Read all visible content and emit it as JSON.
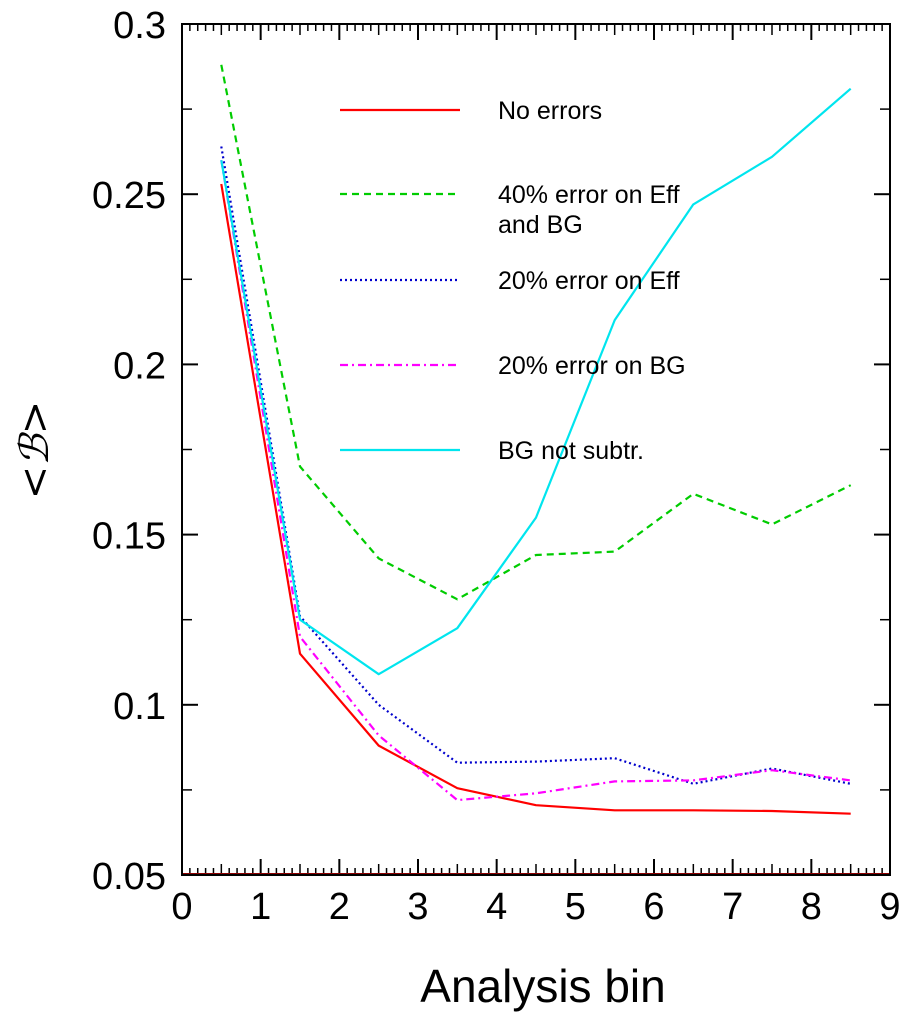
{
  "chart_data": {
    "type": "line",
    "xlabel": "Analysis bin",
    "ylabel": "<ℬ>",
    "xlim": [
      0,
      9
    ],
    "ylim": [
      0.05,
      0.3
    ],
    "xticks": [
      "0",
      "1",
      "2",
      "3",
      "4",
      "5",
      "6",
      "7",
      "8",
      "9"
    ],
    "yticks": [
      "0.05",
      "0.1",
      "0.15",
      "0.2",
      "0.25",
      "0.3"
    ],
    "grid": false,
    "legend_position": "top-right",
    "x": [
      0.5,
      1.5,
      2.5,
      3.5,
      4.5,
      5.5,
      6.5,
      7.5,
      8.5
    ],
    "series": [
      {
        "name": "No errors",
        "color": "#ff0000",
        "dash": "solid",
        "values": [
          0.253,
          0.115,
          0.088,
          0.0755,
          0.0705,
          0.069,
          0.069,
          0.0688,
          0.068
        ]
      },
      {
        "name": "40% error on Eff and BG",
        "legend_lines": [
          "40% error on Eff",
          "and BG"
        ],
        "color": "#00cc00",
        "dash": "dashed",
        "values": [
          0.288,
          0.17,
          0.143,
          0.131,
          0.144,
          0.145,
          0.162,
          0.153,
          0.1645
        ]
      },
      {
        "name": "20% error on Eff",
        "color": "#0000cc",
        "dash": "dotted",
        "values": [
          0.264,
          0.126,
          0.1,
          0.083,
          0.0833,
          0.0843,
          0.0768,
          0.0813,
          0.0768
        ]
      },
      {
        "name": "20% error on BG",
        "color": "#ff00ff",
        "dash": "dashdot",
        "values": [
          0.26,
          0.12,
          0.091,
          0.072,
          0.074,
          0.0775,
          0.0778,
          0.0808,
          0.0778
        ]
      },
      {
        "name": "BG not subtr.",
        "color": "#00e5ee",
        "dash": "solid",
        "values": [
          0.26,
          0.125,
          0.109,
          0.1225,
          0.155,
          0.213,
          0.247,
          0.261,
          0.281
        ]
      }
    ]
  }
}
